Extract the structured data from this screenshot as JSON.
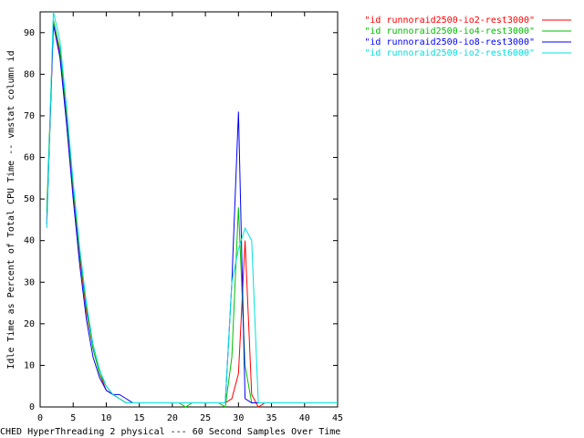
{
  "chart_data": {
    "type": "line",
    "xlabel": "CHED HyperThreading 2 physical --- 60 Second Samples Over Time",
    "ylabel": "Idle Time as Percent of Total CPU Time -- vmstat column id",
    "x": [
      1,
      2,
      3,
      4,
      5,
      6,
      7,
      8,
      9,
      10,
      11,
      12,
      13,
      14,
      15,
      16,
      17,
      18,
      19,
      20,
      21,
      22,
      23,
      24,
      25,
      26,
      27,
      28,
      29,
      30,
      31,
      32,
      33,
      34,
      35,
      36,
      37,
      38,
      39,
      40,
      41,
      42,
      43,
      44,
      45
    ],
    "series": [
      {
        "name": "\"id runnoraid2500-io2-rest3000\"",
        "color": "#ff0000",
        "values": [
          45,
          92,
          85,
          70,
          52,
          36,
          23,
          14,
          8,
          4,
          3,
          2,
          1,
          1,
          1,
          1,
          1,
          1,
          1,
          1,
          1,
          1,
          1,
          1,
          1,
          1,
          1,
          1,
          2,
          8,
          40,
          3,
          0,
          1,
          1,
          1,
          1,
          1,
          1,
          1,
          1,
          1,
          1,
          1,
          1
        ]
      },
      {
        "name": "\"id runnoraid2500-io4-rest3000\"",
        "color": "#00c000",
        "values": [
          47,
          93,
          86,
          71,
          53,
          37,
          24,
          14,
          8,
          5,
          3,
          2,
          1,
          1,
          1,
          1,
          1,
          1,
          1,
          1,
          1,
          0,
          1,
          1,
          1,
          1,
          1,
          0,
          12,
          48,
          10,
          1,
          1,
          1,
          1,
          1,
          1,
          1,
          1,
          1,
          1,
          1,
          1,
          1,
          1
        ]
      },
      {
        "name": "\"id runnoraid2500-io8-rest3000\"",
        "color": "#0000ff",
        "values": [
          44,
          92,
          84,
          68,
          50,
          34,
          21,
          12,
          7,
          4,
          3,
          3,
          2,
          1,
          1,
          1,
          1,
          1,
          1,
          1,
          1,
          1,
          1,
          1,
          1,
          1,
          1,
          1,
          30,
          71,
          2,
          1,
          1,
          1,
          1,
          1,
          1,
          1,
          1,
          1,
          1,
          1,
          1,
          1,
          1
        ]
      },
      {
        "name": "\"id runnoraid2500-io2-rest6000\"",
        "color": "#00e0e0",
        "values": [
          43,
          95,
          88,
          72,
          54,
          38,
          25,
          15,
          9,
          5,
          3,
          2,
          1,
          1,
          1,
          1,
          1,
          1,
          1,
          1,
          1,
          1,
          1,
          1,
          1,
          1,
          1,
          1,
          30,
          38,
          43,
          40,
          1,
          1,
          1,
          1,
          1,
          1,
          1,
          1,
          1,
          1,
          1,
          1,
          1
        ]
      }
    ],
    "xlim": [
      0,
      45
    ],
    "ylim": [
      0,
      95
    ],
    "xticks": [
      0,
      5,
      10,
      15,
      20,
      25,
      30,
      35,
      40,
      45
    ],
    "yticks": [
      0,
      10,
      20,
      30,
      40,
      50,
      60,
      70,
      80,
      90
    ],
    "legend": "top-right"
  }
}
